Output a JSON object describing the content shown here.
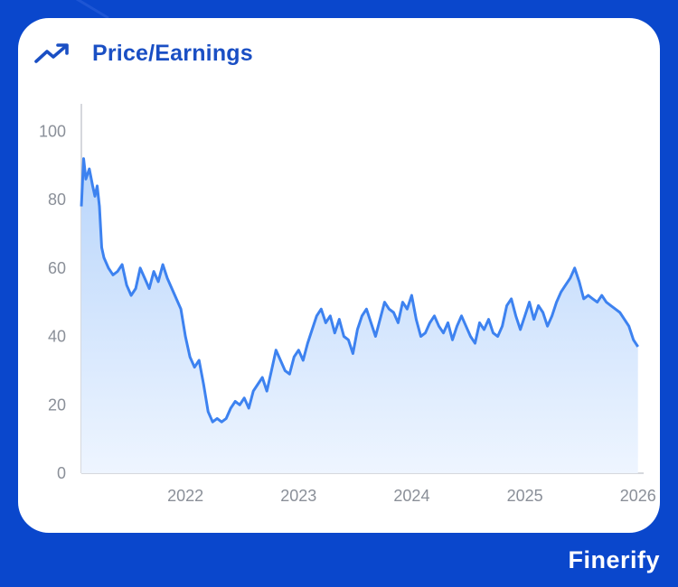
{
  "header": {
    "title": "Price/Earnings",
    "icon": "trending-up-icon"
  },
  "brand": {
    "name": "Finerify"
  },
  "colors": {
    "background": "#0a47cc",
    "accent": "#1a4fc4",
    "line": "#3d82f0",
    "fill_top": "#b8d5fb",
    "fill_bottom": "#eef5ff"
  },
  "chart_data": {
    "type": "area",
    "title": "Price/Earnings",
    "xlabel": "",
    "ylabel": "",
    "ylim": [
      0,
      108
    ],
    "xlim": [
      2021.08,
      2026.05
    ],
    "yticks": [
      "0",
      "20",
      "40",
      "60",
      "80",
      "100"
    ],
    "ytick_values": [
      0,
      20,
      40,
      60,
      80,
      100
    ],
    "xticks": [
      "2022",
      "2023",
      "2024",
      "2025",
      "2026"
    ],
    "xtick_values": [
      2022,
      2023,
      2024,
      2025,
      2026
    ],
    "grid": false,
    "series": [
      {
        "x": [
          2021.08,
          2021.1,
          2021.12,
          2021.15,
          2021.18,
          2021.2,
          2021.22,
          2021.24,
          2021.26,
          2021.28,
          2021.32,
          2021.36,
          2021.4,
          2021.44,
          2021.48,
          2021.52,
          2021.56,
          2021.6,
          2021.64,
          2021.68,
          2021.72,
          2021.76,
          2021.8,
          2021.84,
          2021.88,
          2021.92,
          2021.96,
          2022.0,
          2022.04,
          2022.08,
          2022.12,
          2022.16,
          2022.2,
          2022.24,
          2022.28,
          2022.32,
          2022.36,
          2022.4,
          2022.44,
          2022.48,
          2022.52,
          2022.56,
          2022.6,
          2022.64,
          2022.68,
          2022.72,
          2022.76,
          2022.8,
          2022.84,
          2022.88,
          2022.92,
          2022.96,
          2023.0,
          2023.04,
          2023.08,
          2023.12,
          2023.16,
          2023.2,
          2023.24,
          2023.28,
          2023.32,
          2023.36,
          2023.4,
          2023.44,
          2023.48,
          2023.52,
          2023.56,
          2023.6,
          2023.64,
          2023.68,
          2023.72,
          2023.76,
          2023.8,
          2023.84,
          2023.88,
          2023.92,
          2023.96,
          2024.0,
          2024.04,
          2024.08,
          2024.12,
          2024.16,
          2024.2,
          2024.24,
          2024.28,
          2024.32,
          2024.36,
          2024.4,
          2024.44,
          2024.48,
          2024.52,
          2024.56,
          2024.6,
          2024.64,
          2024.68,
          2024.72,
          2024.76,
          2024.8,
          2024.84,
          2024.88,
          2024.92,
          2024.96,
          2025.0,
          2025.04,
          2025.08,
          2025.12,
          2025.16,
          2025.2,
          2025.24,
          2025.28,
          2025.32,
          2025.36,
          2025.4,
          2025.44,
          2025.48,
          2025.52,
          2025.56,
          2025.6,
          2025.64,
          2025.68,
          2025.72,
          2025.76,
          2025.8,
          2025.84,
          2025.88,
          2025.92,
          2025.96,
          2026.0
        ],
        "values": [
          78,
          92,
          86,
          89,
          84,
          81,
          84,
          78,
          66,
          63,
          60,
          58,
          59,
          61,
          55,
          52,
          54,
          60,
          57,
          54,
          59,
          56,
          61,
          57,
          54,
          51,
          48,
          40,
          34,
          31,
          33,
          26,
          18,
          15,
          16,
          15,
          16,
          19,
          21,
          20,
          22,
          19,
          24,
          26,
          28,
          24,
          30,
          36,
          33,
          30,
          29,
          34,
          36,
          33,
          38,
          42,
          46,
          48,
          44,
          46,
          41,
          45,
          40,
          39,
          35,
          42,
          46,
          48,
          44,
          40,
          45,
          50,
          48,
          47,
          44,
          50,
          48,
          52,
          45,
          40,
          41,
          44,
          46,
          43,
          41,
          44,
          39,
          43,
          46,
          43,
          40,
          38,
          44,
          42,
          45,
          41,
          40,
          43,
          49,
          51,
          46,
          42,
          46,
          50,
          45,
          49,
          47,
          43,
          46,
          50,
          53,
          55,
          57,
          60,
          56,
          51,
          52,
          51,
          50,
          52,
          50,
          49,
          48,
          47,
          45,
          43,
          39,
          37
        ]
      }
    ]
  }
}
